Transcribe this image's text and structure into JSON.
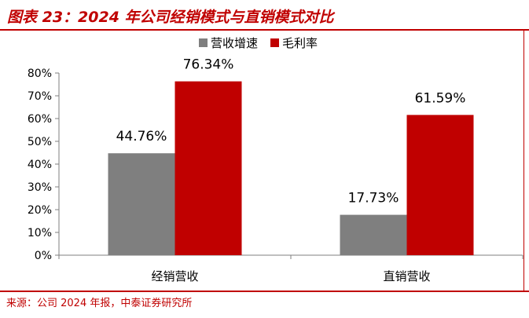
{
  "title": "图表 23：2024 年公司经销模式与直销模式对比",
  "source": "来源：公司 2024 年报，中泰证券研究所",
  "colors": {
    "accent": "#c00000",
    "series_gray": "#7f7f7f",
    "series_red": "#c00000"
  },
  "chart_data": {
    "type": "bar",
    "categories": [
      "经销营收",
      "直销营收"
    ],
    "series": [
      {
        "name": "营收增速",
        "values": [
          44.76,
          17.73
        ],
        "labels": [
          "44.76%",
          "17.73%"
        ],
        "color": "#7f7f7f"
      },
      {
        "name": "毛利率",
        "values": [
          76.34,
          61.59
        ],
        "labels": [
          "76.34%",
          "61.59%"
        ],
        "color": "#c00000"
      }
    ],
    "ylim": [
      0,
      80
    ],
    "yticks": [
      "0%",
      "10%",
      "20%",
      "30%",
      "40%",
      "50%",
      "60%",
      "70%",
      "80%"
    ],
    "legend_position": "top-right",
    "grid": false
  }
}
